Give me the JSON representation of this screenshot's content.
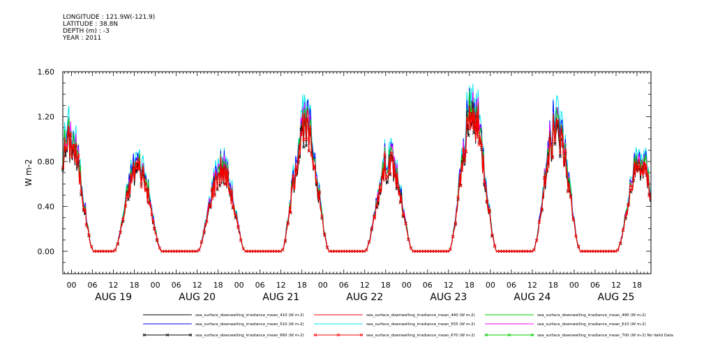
{
  "header": {
    "lines": [
      "LONGITUDE : 121.9W(-121.9)",
      "LATITUDE : 38.8N",
      "DEPTH (m) : -3",
      "YEAR : 2011"
    ]
  },
  "chart_data": {
    "type": "line",
    "title": "",
    "xlabel": "",
    "ylabel": "W m-2",
    "ylim": [
      -0.2,
      1.6
    ],
    "yticks": [
      "0.00",
      "0.40",
      "0.80",
      "1.20",
      "1.60"
    ],
    "ytick_values": [
      0.0,
      0.4,
      0.8,
      1.2,
      1.6
    ],
    "xticks": [
      "00",
      "06",
      "12",
      "18",
      "00",
      "06",
      "12",
      "18",
      "00",
      "06",
      "12",
      "18",
      "00",
      "06",
      "12",
      "18",
      "00",
      "06",
      "12",
      "18",
      "00",
      "06",
      "12",
      "18",
      "00",
      "06",
      "12",
      "18"
    ],
    "xtick_hours": [
      0,
      6,
      12,
      18,
      24,
      30,
      36,
      42,
      48,
      54,
      60,
      66,
      72,
      78,
      84,
      90,
      96,
      102,
      108,
      114,
      120,
      126,
      132,
      138,
      144,
      150,
      156,
      162
    ],
    "xrange_hours": [
      -2.5,
      166
    ],
    "day_labels": [
      "AUG 19",
      "AUG 20",
      "AUG 21",
      "AUG 22",
      "AUG 23",
      "AUG 24",
      "AUG 25"
    ],
    "day_peaks": [
      {
        "hour_offset": -0.5,
        "peak": 1.05
      },
      {
        "hour_offset": 19,
        "peak": 0.8
      },
      {
        "hour_offset": 43,
        "peak": 0.78
      },
      {
        "hour_offset": 67,
        "peak": 1.15
      },
      {
        "hour_offset": 91,
        "peak": 0.85
      },
      {
        "hour_offset": 115,
        "peak": 1.28
      },
      {
        "hour_offset": 139,
        "peak": 1.15
      },
      {
        "hour_offset": 163,
        "peak": 0.82
      }
    ],
    "series": [
      {
        "name": "sea_surface_downwelling_irradiance_mean_410 (W m-2)",
        "color": "#000000",
        "scale": 1.0,
        "marker": "none"
      },
      {
        "name": "sea_surface_downwelling_irradiance_mean_440 (W m-2)",
        "color": "#ff0000",
        "scale": 1.02,
        "marker": "none"
      },
      {
        "name": "sea_surface_downwelling_irradiance_mean_490 (W m-2)",
        "color": "#00cc00",
        "scale": 1.06,
        "marker": "none"
      },
      {
        "name": "sea_surface_downwelling_irradiance_mean_510 (W m-2)",
        "color": "#0000ff",
        "scale": 1.1,
        "marker": "none"
      },
      {
        "name": "sea_surface_downwelling_irradiance_mean_555 (W m-2)",
        "color": "#00e5ee",
        "scale": 1.14,
        "marker": "none"
      },
      {
        "name": "sea_surface_downwelling_irradiance_mean_610 (W m-2)",
        "color": "#ff00ff",
        "scale": 1.07,
        "marker": "none"
      },
      {
        "name": "sea_surface_downwelling_irradiance_mean_660 (W m-2)",
        "color": "#000000",
        "scale": 0.96,
        "marker": "x"
      },
      {
        "name": "sea_surface_downwelling_irradiance_mean_670 (W m-2)",
        "color": "#ff0000",
        "scale": 0.98,
        "marker": "x"
      },
      {
        "name": "sea_surface_downwelling_irradiance_mean_700 (W m-2) No Valid Data",
        "color": "#00cc00",
        "scale": 0.0,
        "marker": "x",
        "empty": true
      }
    ]
  }
}
